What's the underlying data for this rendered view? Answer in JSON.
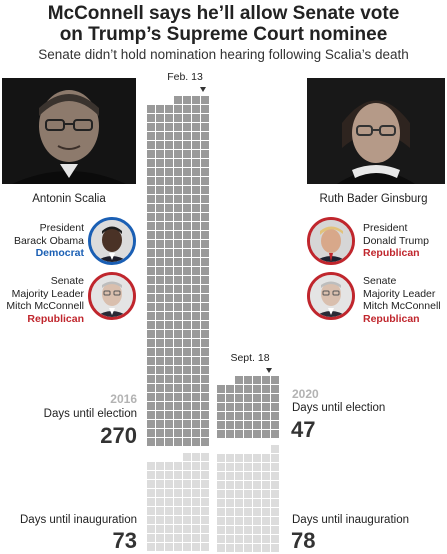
{
  "header": {
    "title_line1": "McConnell says he’ll allow Senate vote",
    "title_line2": "on Trump’s Supreme Court nominee",
    "subtitle": "Senate didn’t hold nomination hearing following Scalia’s death"
  },
  "left": {
    "name": "Antonin Scalia",
    "marker": "Feb. 13",
    "president": {
      "line1": "President",
      "line2": "Barack Obama",
      "party": "Democrat"
    },
    "senate": {
      "line1": "Senate",
      "line2": "Majority Leader",
      "line3": "Mitch McConnell",
      "party": "Republican"
    },
    "year": "2016",
    "election_label": "Days until election",
    "election_days": "270",
    "inauguration_label": "Days until inauguration",
    "inauguration_days": "73"
  },
  "right": {
    "name": "Ruth Bader Ginsburg",
    "marker": "Sept. 18",
    "president": {
      "line1": "President",
      "line2": "Donald Trump",
      "party": "Republican"
    },
    "senate": {
      "line1": "Senate",
      "line2": "Majority Leader",
      "line3": "Mitch McConnell",
      "party": "Republican"
    },
    "year": "2020",
    "election_label": "Days until election",
    "election_days": "47",
    "inauguration_label": "Days until inauguration",
    "inauguration_days": "78"
  },
  "colors": {
    "democrat": "#1a5fb4",
    "republican": "#c0262d",
    "election_squares": "#9a9a9a",
    "inauguration_squares": "#dcdcdc"
  }
}
